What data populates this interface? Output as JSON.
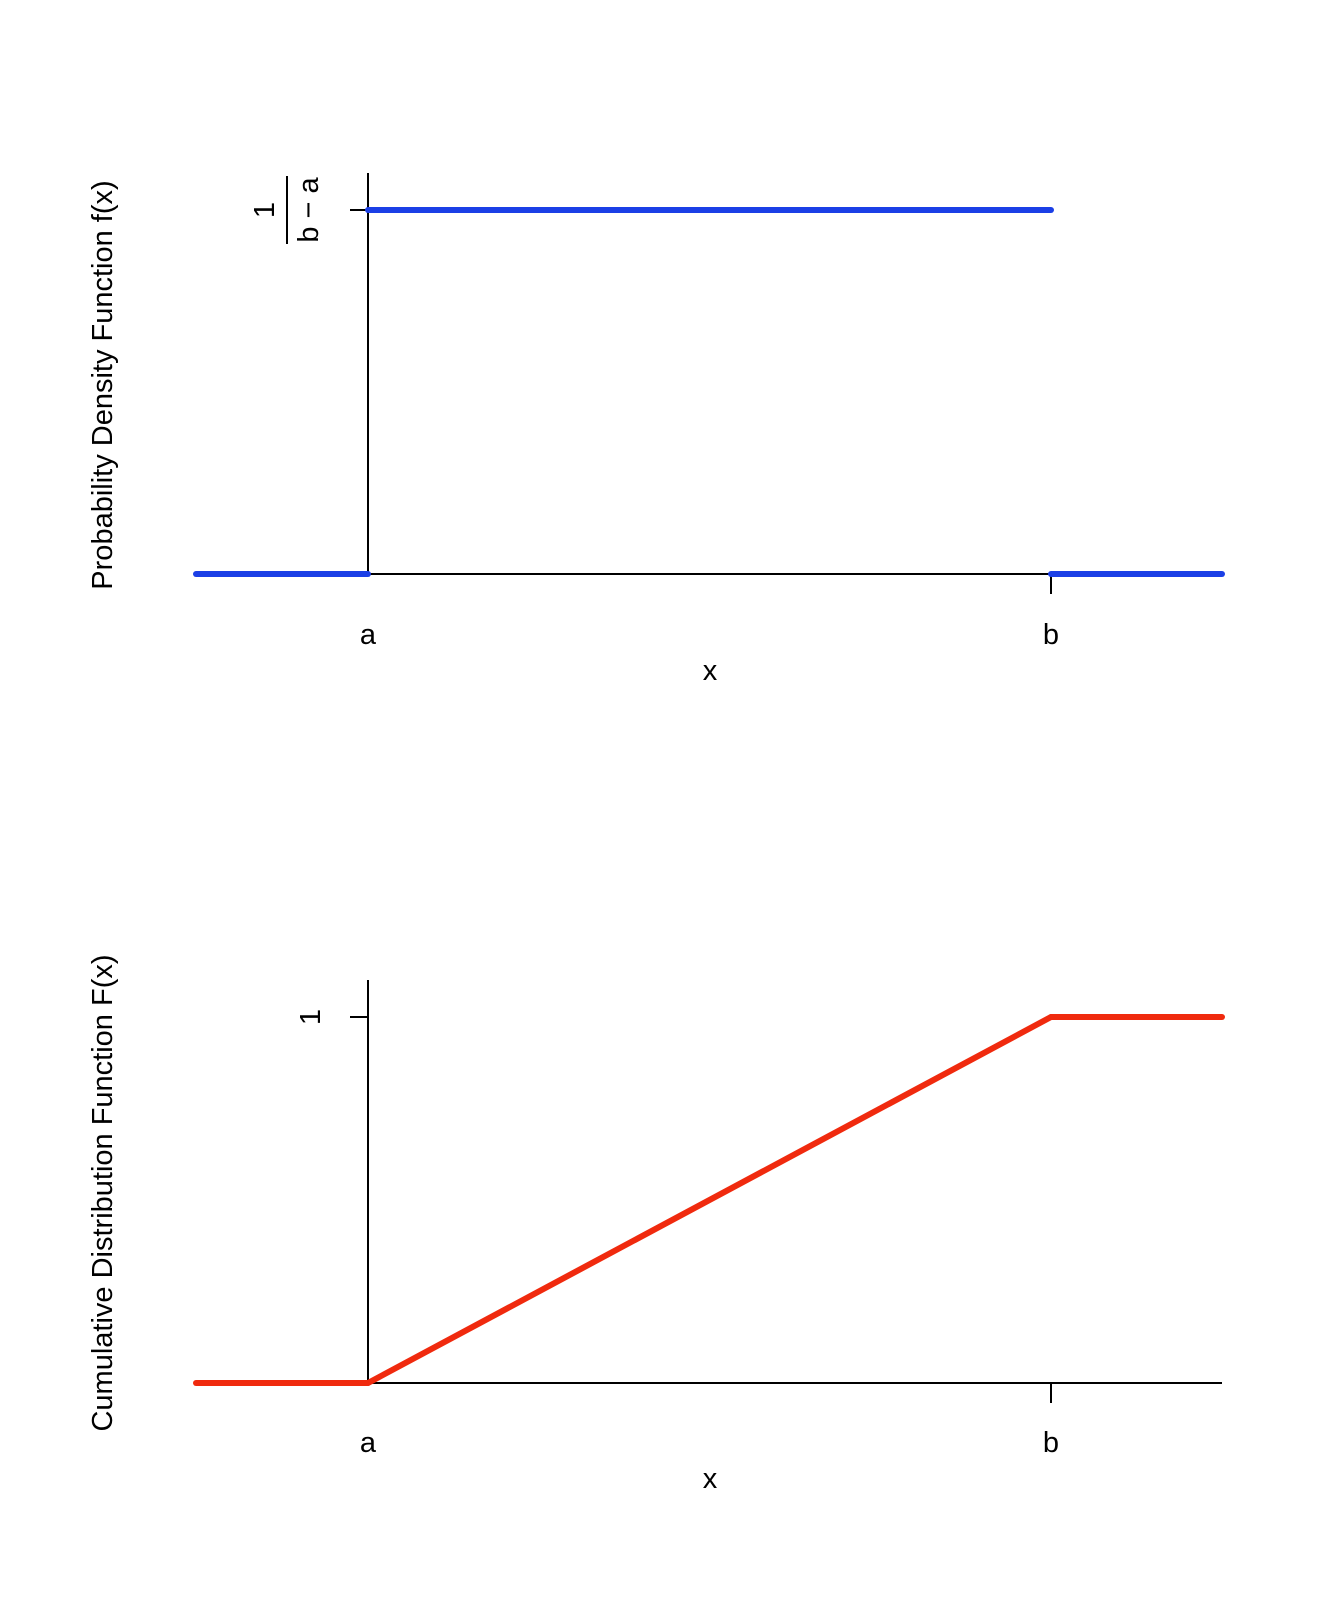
{
  "chart_data": [
    {
      "type": "line",
      "ylabel": "Probability Density Function f(x)",
      "xlabel": "x",
      "x_tick_labels": [
        "a",
        "b"
      ],
      "y_tick_labels": [
        {
          "value": "0",
          "text": ""
        },
        {
          "value": "1/(b-a)",
          "numerator": "1",
          "denominator": "b − a"
        }
      ],
      "xlim": [
        "a-0.25(b-a)",
        "b+0.25(b-a)"
      ],
      "grid": false,
      "line_color": "#1B3FE6",
      "segments": [
        {
          "x": [
            "a-0.25(b-a)",
            "a"
          ],
          "y": [
            0,
            0
          ]
        },
        {
          "x": [
            "a",
            "b"
          ],
          "y": [
            1,
            1
          ],
          "y_units": "1/(b-a)"
        },
        {
          "x": [
            "b",
            "b+0.25(b-a)"
          ],
          "y": [
            0,
            0
          ]
        }
      ]
    },
    {
      "type": "line",
      "ylabel": "Cumulative Distribution Function F(x)",
      "xlabel": "x",
      "x_tick_labels": [
        "a",
        "b"
      ],
      "y_tick_labels": [
        {
          "value": "0",
          "text": ""
        },
        {
          "value": "1",
          "text": "1"
        }
      ],
      "xlim": [
        "a-0.25(b-a)",
        "b+0.25(b-a)"
      ],
      "ylim": [
        0,
        1
      ],
      "grid": false,
      "line_color": "#F02A0E",
      "series": [
        {
          "x": [
            "a-0.25(b-a)",
            "a",
            "b",
            "b+0.25(b-a)"
          ],
          "y": [
            0,
            0,
            1,
            1
          ]
        }
      ]
    }
  ]
}
